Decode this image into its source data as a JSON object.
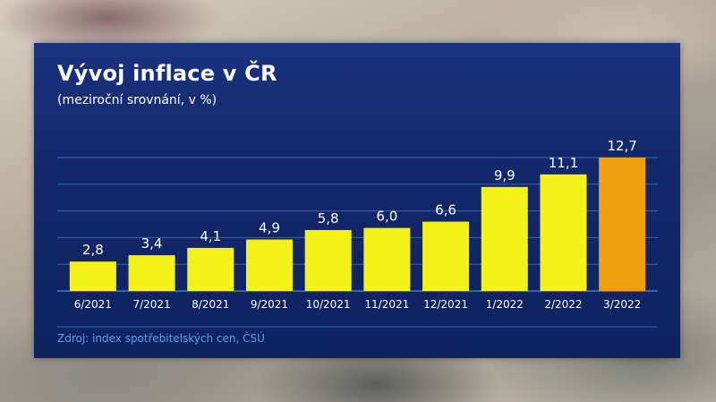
{
  "title": "Vývoj inflace v ČR",
  "subtitle": "(meziroční srovnání, v %)",
  "source": "Zdroj: index spotřebitelských cen, ČSÚ",
  "colors": {
    "bar": "#f2f21a",
    "bar_highlight": "#eea010",
    "grid": "#3a7fd0",
    "label": "#ffffff"
  },
  "chart_data": {
    "type": "bar",
    "title": "Vývoj inflace v ČR",
    "subtitle": "(meziroční srovnání, v %)",
    "categories": [
      "6/2021",
      "7/2021",
      "8/2021",
      "9/2021",
      "10/2021",
      "11/2021",
      "12/2021",
      "1/2022",
      "2/2022",
      "3/2022"
    ],
    "values": [
      2.8,
      3.4,
      4.1,
      4.9,
      5.8,
      6.0,
      6.6,
      9.9,
      11.1,
      12.7
    ],
    "value_labels": [
      "2,8",
      "3,4",
      "4,1",
      "4,9",
      "5,8",
      "6,0",
      "6,6",
      "9,9",
      "11,1",
      "12,7"
    ],
    "highlight_index": 9,
    "ylim": [
      0,
      12.7
    ],
    "grid": true,
    "xlabel": "",
    "ylabel": ""
  }
}
